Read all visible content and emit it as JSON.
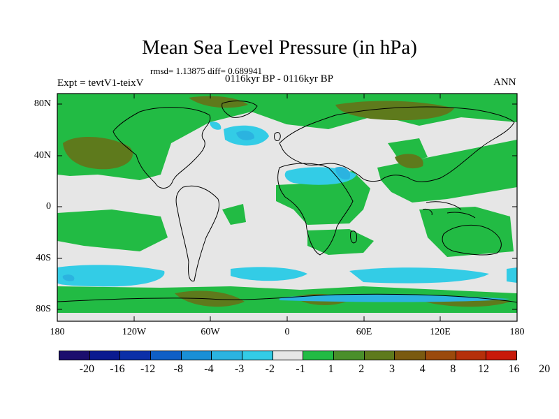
{
  "header": {
    "title": "Mean Sea Level Pressure (in hPa)",
    "stats": "rmsd= 1.13875  diff= 0.689941",
    "expt": "Expt = tevtV1-teixV",
    "period": "0116kyr BP - 0116kyr BP",
    "season": "ANN"
  },
  "map": {
    "lat_labels": [
      "80N",
      "40N",
      "0",
      "40S",
      "80S"
    ],
    "lon_labels": [
      "180",
      "120W",
      "60W",
      "0",
      "60E",
      "120E",
      "180"
    ],
    "ocean_color": "#e6e6e6",
    "coast_color": "#000000"
  },
  "colorbar": {
    "colors": [
      "#1b0e6e",
      "#0a1a90",
      "#0b2fa8",
      "#0f5fc6",
      "#1a8fd6",
      "#2bb3e0",
      "#33cce6",
      "#e6e6e6",
      "#22bb44",
      "#4a8f2a",
      "#5e7a1c",
      "#7a5a10",
      "#9b4a0c",
      "#b5300b",
      "#c81a0a"
    ],
    "labels": [
      "-20",
      "-16",
      "-12",
      "-8",
      "-4",
      "-3",
      "-2",
      "-1",
      "1",
      "2",
      "3",
      "4",
      "8",
      "12",
      "16",
      "20"
    ]
  }
}
